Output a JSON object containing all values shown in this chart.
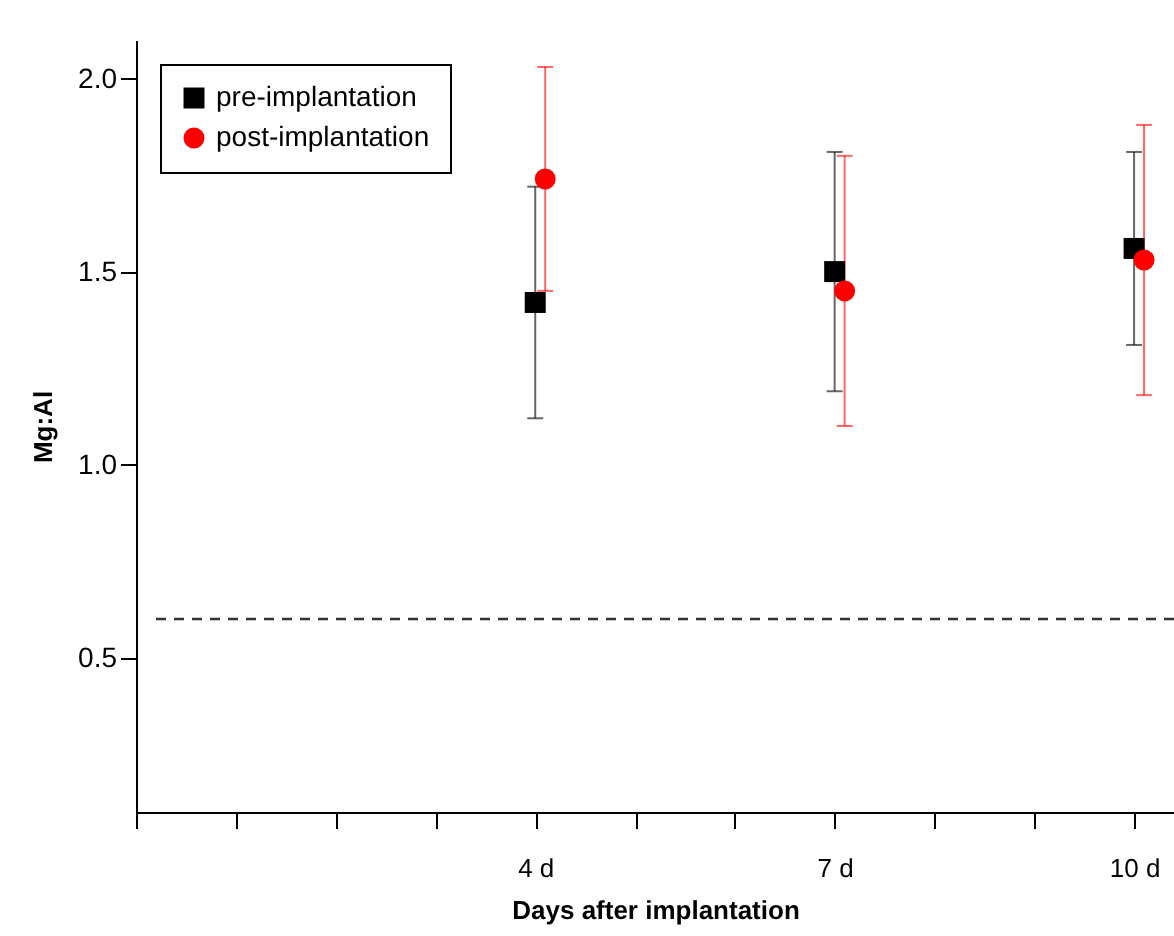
{
  "chart_data": {
    "type": "scatter",
    "xlabel": "Days after implantation",
    "ylabel": "Mg:Al",
    "xlim": [
      0,
      10.4
    ],
    "ylim": [
      0.1,
      2.1
    ],
    "xticks": [
      {
        "value": 0,
        "label": null
      },
      {
        "value": 1,
        "label": null
      },
      {
        "value": 2,
        "label": null
      },
      {
        "value": 3,
        "label": null
      },
      {
        "value": 4,
        "label": "4 d"
      },
      {
        "value": 5,
        "label": null
      },
      {
        "value": 6,
        "label": null
      },
      {
        "value": 7,
        "label": "7 d"
      },
      {
        "value": 8,
        "label": null
      },
      {
        "value": 9,
        "label": null
      },
      {
        "value": 10,
        "label": "10 d"
      }
    ],
    "yticks": [
      0.5,
      {
        "value": 1,
        "label": "1.0"
      },
      1.5,
      {
        "value": 2,
        "label": "2.0"
      }
    ],
    "grid": false,
    "legend": "top left",
    "series": [
      {
        "name": "pre-implantation",
        "color": "#000000",
        "marker": "square",
        "x": [
          4,
          7,
          10
        ],
        "values": [
          1.42,
          1.5,
          1.56
        ],
        "errors": [
          [
            1.12,
            1.72
          ],
          [
            1.19,
            1.81
          ],
          [
            1.31,
            1.81
          ]
        ]
      },
      {
        "name": "post-implantation",
        "color": "#ff0000",
        "marker": "circle",
        "x": [
          4.1,
          7.1,
          10.1
        ],
        "values": [
          1.74,
          1.45,
          1.53
        ],
        "errors": [
          [
            1.45,
            2.03
          ],
          [
            1.1,
            1.8
          ],
          [
            1.18,
            1.88
          ]
        ]
      }
    ],
    "ref_lines": [
      {
        "axis": "y",
        "value": 0.6,
        "label": null,
        "color": "#333333",
        "line_style": "dashed"
      }
    ]
  }
}
